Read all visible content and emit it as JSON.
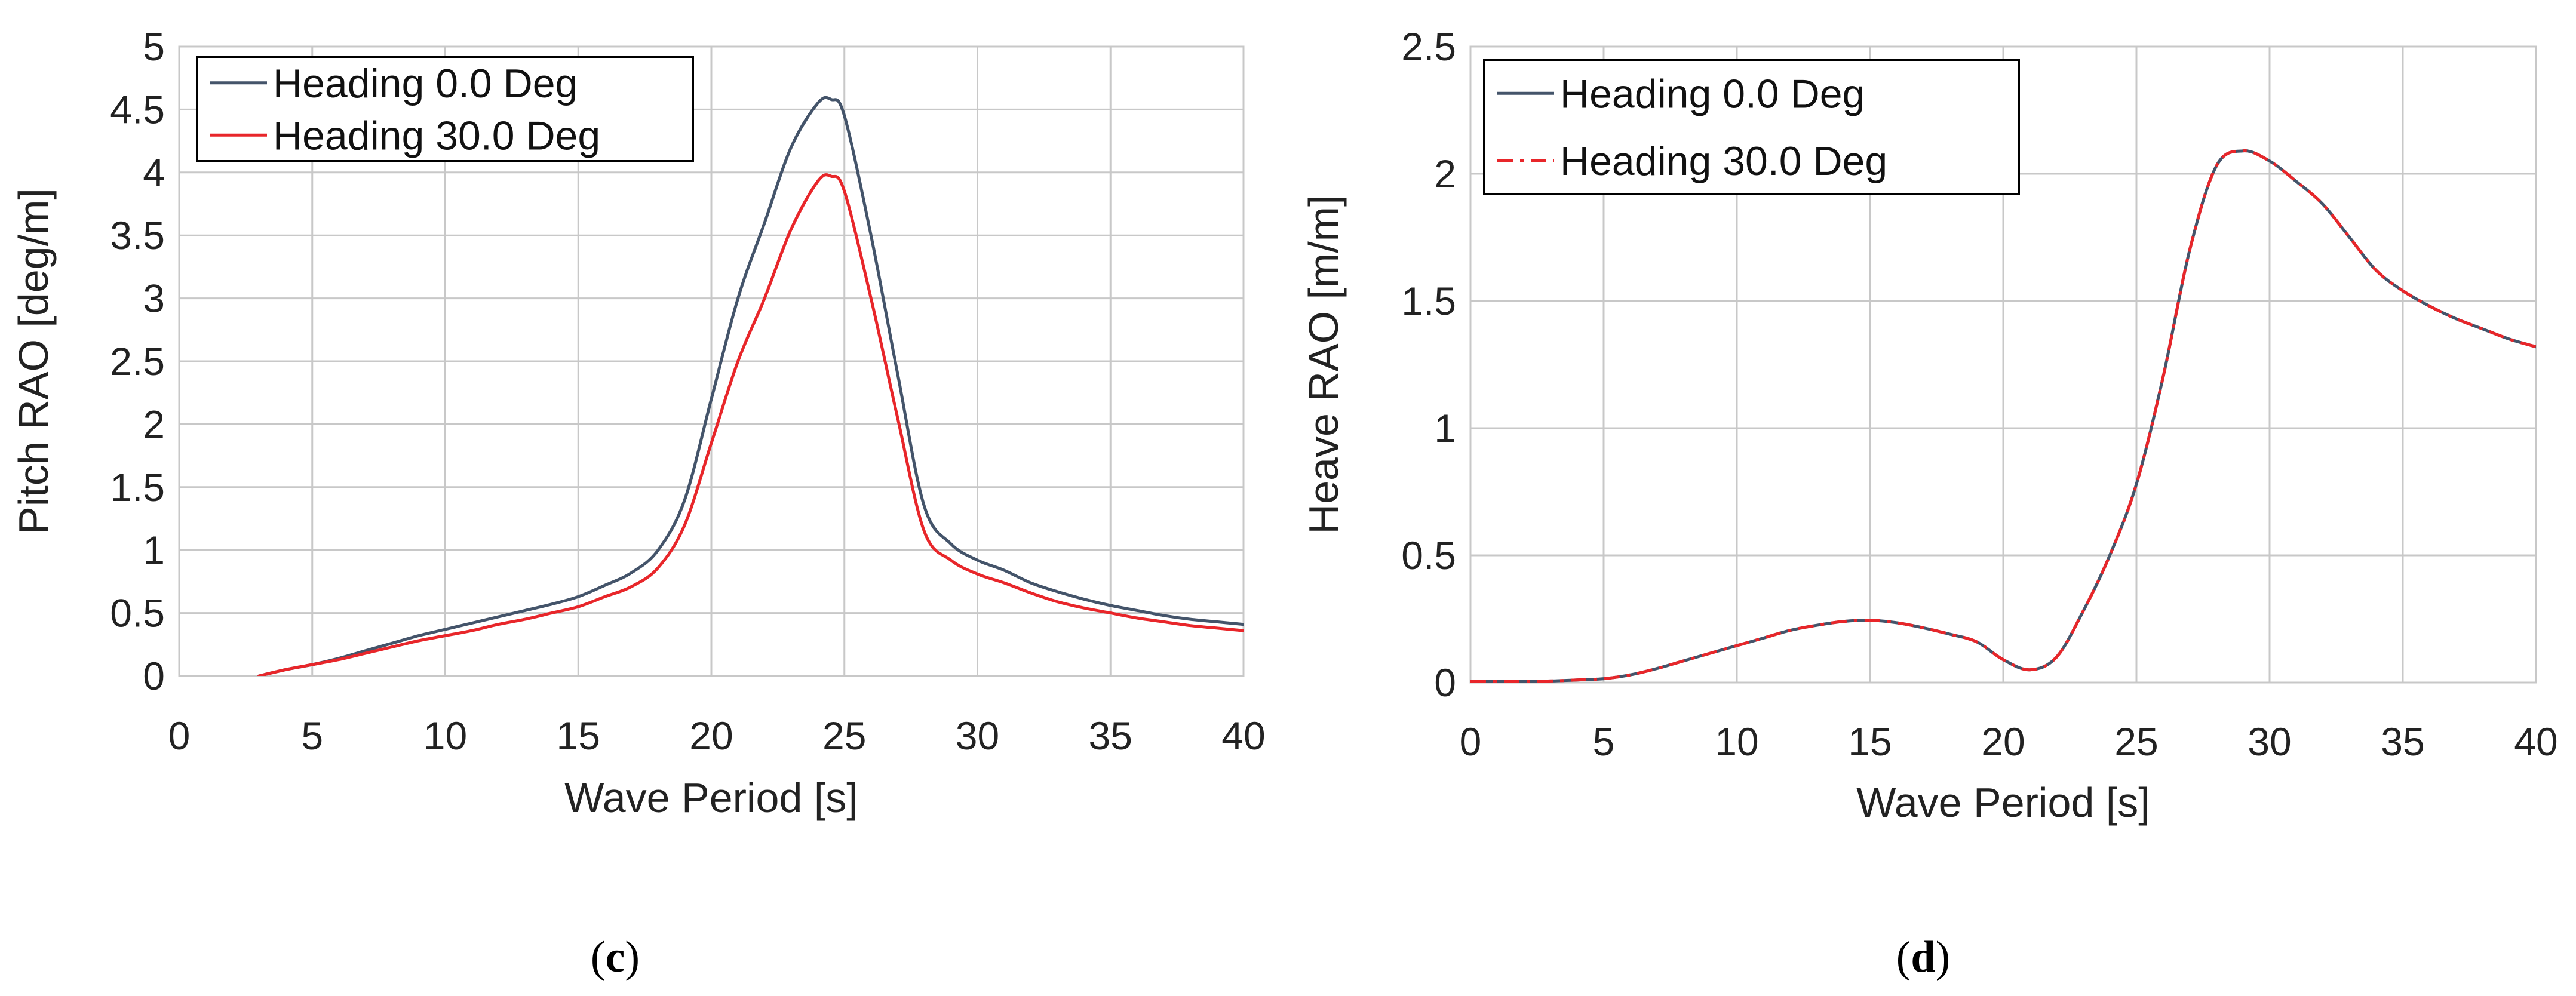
{
  "chart_data": [
    {
      "id": "c",
      "type": "line",
      "panel_label": "c",
      "xlabel": "Wave Period [s]",
      "ylabel": "Pitch RAO [deg/m]",
      "xlim": [
        0,
        40
      ],
      "ylim": [
        0,
        5
      ],
      "xticks": [
        "0",
        "5",
        "10",
        "15",
        "20",
        "25",
        "30",
        "35",
        "40"
      ],
      "yticks": [
        "0",
        "0.5",
        "1",
        "1.5",
        "2",
        "2.5",
        "3",
        "3.5",
        "4",
        "4.5",
        "5"
      ],
      "grid": true,
      "legend_position": "top-left",
      "series": [
        {
          "name": "Heading 0.0 Deg",
          "color": "#44546a",
          "dash": "solid",
          "x": [
            3,
            4,
            5,
            6,
            7,
            8,
            9,
            10,
            11,
            12,
            13,
            14,
            15,
            16,
            17,
            18,
            19,
            20,
            21,
            22,
            23,
            24,
            24.5,
            25,
            26,
            27,
            28,
            29,
            30,
            31,
            32,
            33,
            34,
            35,
            36,
            37,
            38,
            39,
            40
          ],
          "y": [
            0,
            0.05,
            0.09,
            0.14,
            0.2,
            0.26,
            0.32,
            0.37,
            0.42,
            0.47,
            0.52,
            0.57,
            0.63,
            0.72,
            0.82,
            1.0,
            1.4,
            2.2,
            3.0,
            3.6,
            4.2,
            4.55,
            4.58,
            4.45,
            3.5,
            2.4,
            1.35,
            1.05,
            0.92,
            0.84,
            0.74,
            0.67,
            0.61,
            0.56,
            0.52,
            0.48,
            0.45,
            0.43,
            0.41
          ]
        },
        {
          "name": "Heading 30.0 Deg",
          "color": "#e8262a",
          "dash": "solid",
          "x": [
            3,
            4,
            5,
            6,
            7,
            8,
            9,
            10,
            11,
            12,
            13,
            14,
            15,
            16,
            17,
            18,
            19,
            20,
            21,
            22,
            23,
            24,
            24.5,
            25,
            26,
            27,
            28,
            29,
            30,
            31,
            32,
            33,
            34,
            35,
            36,
            37,
            38,
            39,
            40
          ],
          "y": [
            0,
            0.05,
            0.09,
            0.13,
            0.18,
            0.23,
            0.28,
            0.32,
            0.36,
            0.41,
            0.45,
            0.5,
            0.55,
            0.63,
            0.71,
            0.86,
            1.2,
            1.85,
            2.5,
            3.0,
            3.55,
            3.93,
            3.97,
            3.85,
            3.0,
            2.05,
            1.15,
            0.92,
            0.81,
            0.74,
            0.66,
            0.59,
            0.54,
            0.5,
            0.46,
            0.43,
            0.4,
            0.38,
            0.36
          ]
        }
      ]
    },
    {
      "id": "d",
      "type": "line",
      "panel_label": "d",
      "xlabel": "Wave Period [s]",
      "ylabel": "Heave RAO [m/m]",
      "xlim": [
        0,
        40
      ],
      "ylim": [
        0,
        2.5
      ],
      "xticks": [
        "0",
        "5",
        "10",
        "15",
        "20",
        "25",
        "30",
        "35",
        "40"
      ],
      "yticks": [
        "0",
        "0.5",
        "1",
        "1.5",
        "2",
        "2.5"
      ],
      "grid": true,
      "legend_position": "top-left",
      "series": [
        {
          "name": "Heading 0.0 Deg",
          "color": "#44546a",
          "dash": "solid",
          "x": [
            0,
            1,
            2,
            3,
            4,
            5,
            6,
            7,
            8,
            9,
            10,
            11,
            12,
            13,
            14,
            15,
            16,
            17,
            18,
            19,
            20,
            21,
            22,
            23,
            24,
            25,
            26,
            27,
            28,
            29,
            30,
            31,
            32,
            33,
            34,
            35,
            36,
            37,
            38,
            39,
            40
          ],
          "y": [
            0.005,
            0.005,
            0.005,
            0.006,
            0.01,
            0.015,
            0.03,
            0.055,
            0.085,
            0.115,
            0.145,
            0.175,
            0.205,
            0.225,
            0.24,
            0.245,
            0.235,
            0.215,
            0.19,
            0.16,
            0.09,
            0.05,
            0.1,
            0.28,
            0.5,
            0.78,
            1.2,
            1.7,
            2.03,
            2.09,
            2.05,
            1.97,
            1.88,
            1.75,
            1.62,
            1.54,
            1.48,
            1.43,
            1.39,
            1.35,
            1.32
          ]
        },
        {
          "name": "Heading 30.0 Deg",
          "color": "#e8262a",
          "dash": "dashdot",
          "x": [
            0,
            1,
            2,
            3,
            4,
            5,
            6,
            7,
            8,
            9,
            10,
            11,
            12,
            13,
            14,
            15,
            16,
            17,
            18,
            19,
            20,
            21,
            22,
            23,
            24,
            25,
            26,
            27,
            28,
            29,
            30,
            31,
            32,
            33,
            34,
            35,
            36,
            37,
            38,
            39,
            40
          ],
          "y": [
            0.005,
            0.005,
            0.005,
            0.006,
            0.01,
            0.015,
            0.03,
            0.055,
            0.085,
            0.115,
            0.145,
            0.175,
            0.205,
            0.225,
            0.24,
            0.245,
            0.235,
            0.215,
            0.19,
            0.16,
            0.09,
            0.05,
            0.1,
            0.28,
            0.5,
            0.78,
            1.2,
            1.7,
            2.03,
            2.09,
            2.05,
            1.97,
            1.88,
            1.75,
            1.62,
            1.54,
            1.48,
            1.43,
            1.39,
            1.35,
            1.32
          ]
        }
      ]
    }
  ],
  "captions": {
    "c": {
      "open": "(",
      "letter": "c",
      "close": ")"
    },
    "d": {
      "open": "(",
      "letter": "d",
      "close": ")"
    }
  }
}
